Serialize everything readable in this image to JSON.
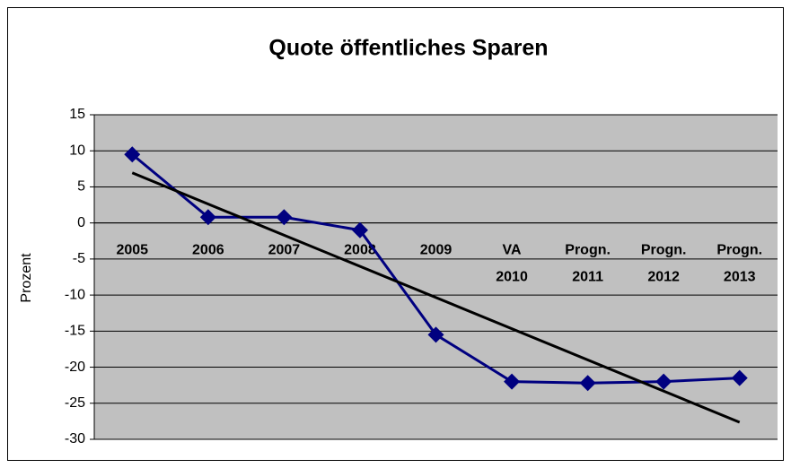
{
  "chart_data": {
    "type": "line",
    "title": "Quote öffentliches Sparen",
    "y_label": "Prozent",
    "categories": [
      [
        "2005"
      ],
      [
        "2006"
      ],
      [
        "2007"
      ],
      [
        "2008"
      ],
      [
        "2009"
      ],
      [
        "VA",
        "2010"
      ],
      [
        "Progn.",
        "2011"
      ],
      [
        "Progn.",
        "2012"
      ],
      [
        "Progn.",
        "2013"
      ]
    ],
    "series": [
      {
        "name": "Quote öffentliches Sparen",
        "color": "#000080",
        "values": [
          9.5,
          0.8,
          0.8,
          -1,
          -15.5,
          -22,
          -22.2,
          -22,
          -21.5
        ]
      }
    ],
    "trendline": "linear",
    "trendline_color": "#000000",
    "ylim": [
      -30,
      15
    ],
    "yticks": [
      -30,
      -25,
      -20,
      -15,
      -10,
      -5,
      0,
      5,
      10,
      15
    ],
    "grid": true,
    "plot_background": "#c0c0c0"
  }
}
